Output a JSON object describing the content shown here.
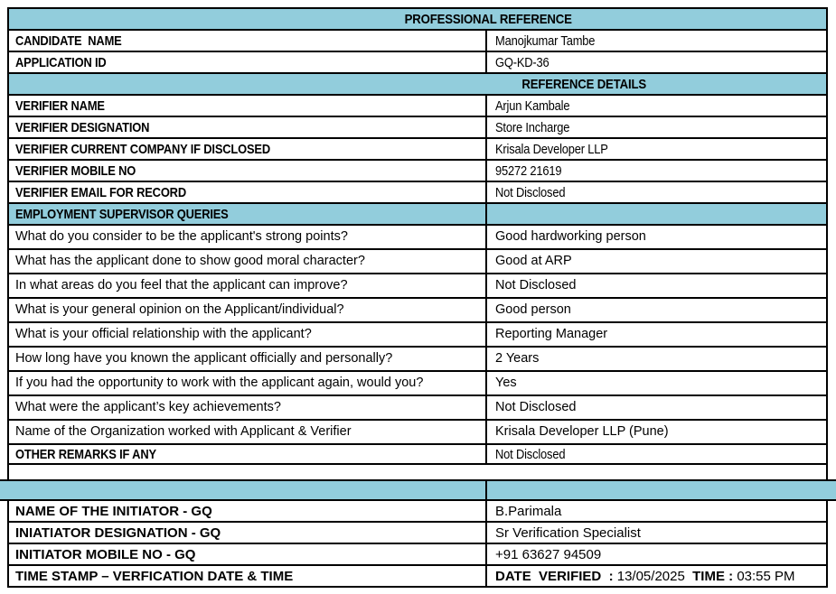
{
  "title": "PROFESSIONAL REFERENCE",
  "colors": {
    "header_bg": "#92CDDC",
    "border": "#000000",
    "background": "#FFFFFF",
    "text": "#000000"
  },
  "rows": [
    {
      "type": "header",
      "text": "PROFESSIONAL REFERENCE"
    },
    {
      "type": "field",
      "label": "CANDIDATE  NAME",
      "value": "Manojkumar Tambe"
    },
    {
      "type": "field",
      "label": "APPLICATION ID",
      "value": "GQ-KD-36"
    },
    {
      "type": "header",
      "text": "REFERENCE DETAILS"
    },
    {
      "type": "field",
      "label": "VERIFIER NAME",
      "value": "Arjun Kambale"
    },
    {
      "type": "field",
      "label": "VERIFIER DESIGNATION",
      "value": "Store Incharge"
    },
    {
      "type": "field",
      "label": "VERIFIER CURRENT COMPANY IF DISCLOSED",
      "value": "Krisala Developer LLP"
    },
    {
      "type": "field",
      "label": "VERIFIER MOBILE NO",
      "value": "95272 21619"
    },
    {
      "type": "field",
      "label": "VERIFIER EMAIL FOR RECORD",
      "value": "Not Disclosed"
    },
    {
      "type": "section",
      "label": "EMPLOYMENT SUPERVISOR QUERIES"
    },
    {
      "type": "query",
      "label": "What do you consider to be the applicant's strong points?",
      "value": "Good hardworking person"
    },
    {
      "type": "query",
      "label": "What has the applicant done to show good moral character?",
      "value": "Good at ARP"
    },
    {
      "type": "query",
      "label": "In what areas do you feel that the applicant can improve?",
      "value": "Not Disclosed"
    },
    {
      "type": "query",
      "label": "What is your general opinion on the Applicant/individual?",
      "value": "Good person"
    },
    {
      "type": "query",
      "label": "What is your official relationship with the applicant?",
      "value": "Reporting Manager"
    },
    {
      "type": "query",
      "label": "How long have you known the applicant officially and personally?",
      "value": "2 Years"
    },
    {
      "type": "query",
      "label": "If you had the opportunity to work with the applicant again, would you?",
      "value": "Yes"
    },
    {
      "type": "query",
      "label": "What were the applicant’s key achievements?",
      "value": "Not Disclosed"
    },
    {
      "type": "query",
      "label": "Name of the Organization worked with Applicant & Verifier",
      "value": "Krisala Developer LLP (Pune)"
    },
    {
      "type": "field",
      "label": "OTHER REMARKS IF ANY",
      "value": "Not Disclosed"
    },
    {
      "type": "field",
      "label": "NAME OF THE INITIATOR - GQ",
      "value": "B.Parimala"
    },
    {
      "type": "field",
      "label": "INIATIATOR DESIGNATION - GQ",
      "value": "Sr Verification Specialist"
    },
    {
      "type": "field",
      "label": "INITIATOR MOBILE NO - GQ",
      "value": "+91 63627 94509"
    },
    {
      "type": "field",
      "label": "TIME STAMP – VERFICATION DATE & TIME",
      "date_label": "DATE  VERIFIED  : ",
      "date_value": "13/05/2025",
      "time_label": "  TIME : ",
      "time_value": "03:55 PM"
    }
  ]
}
